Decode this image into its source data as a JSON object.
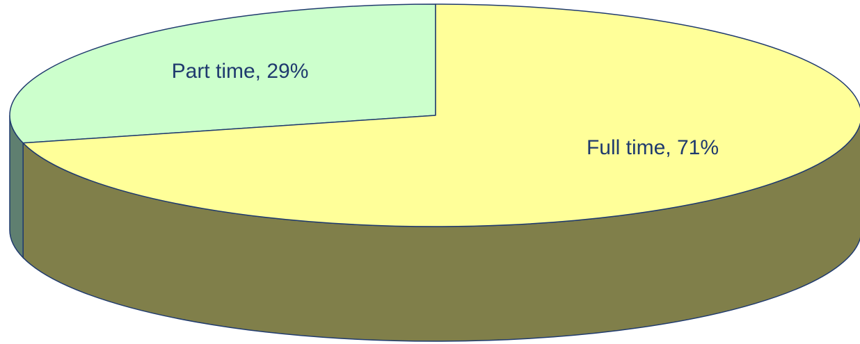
{
  "chart_data": {
    "type": "pie",
    "style": "3d",
    "title": "",
    "slices": [
      {
        "label": "Part time",
        "value": 29,
        "display": "Part time, 29%",
        "top_color": "#ccffcc",
        "side_color": "#5f7f70"
      },
      {
        "label": "Full time",
        "value": 71,
        "display": "Full time, 71%",
        "top_color": "#ffff99",
        "side_color": "#807f4a"
      }
    ],
    "legend": "none",
    "edge_color": "#1f3a6e"
  }
}
